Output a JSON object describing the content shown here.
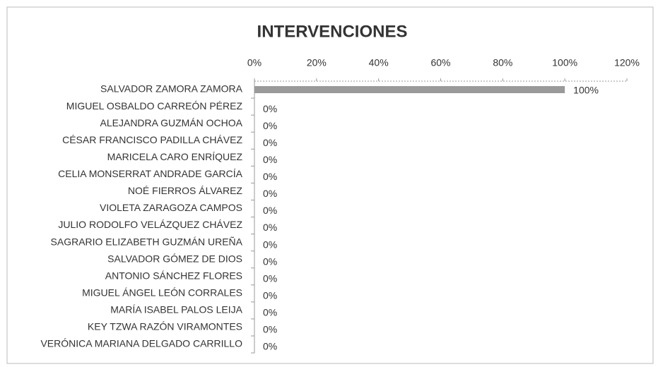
{
  "chart_data": {
    "type": "bar",
    "orientation": "horizontal",
    "title": "INTERVENCIONES",
    "categories": [
      "SALVADOR ZAMORA ZAMORA",
      "MIGUEL OSBALDO CARREÓN PÉREZ",
      "ALEJANDRA GUZMÁN OCHOA",
      "CÉSAR FRANCISCO PADILLA CHÁVEZ",
      "MARICELA CARO ENRÍQUEZ",
      "CELIA MONSERRAT ANDRADE GARCÍA",
      "NOÉ FIERROS ÁLVAREZ",
      "VIOLETA ZARAGOZA CAMPOS",
      "JULIO RODOLFO VELÁZQUEZ CHÁVEZ",
      "SAGRARIO ELIZABETH GUZMÁN UREÑA",
      "SALVADOR GÓMEZ DE DIOS",
      "ANTONIO SÁNCHEZ FLORES",
      "MIGUEL ÁNGEL LEÓN CORRALES",
      "MARÍA ISABEL PALOS LEIJA",
      "KEY TZWA RAZÓN VIRAMONTES",
      "VERÓNICA MARIANA DELGADO CARRILLO"
    ],
    "values": [
      100,
      0,
      0,
      0,
      0,
      0,
      0,
      0,
      0,
      0,
      0,
      0,
      0,
      0,
      0,
      0
    ],
    "value_labels": [
      "100%",
      "0%",
      "0%",
      "0%",
      "0%",
      "0%",
      "0%",
      "0%",
      "0%",
      "0%",
      "0%",
      "0%",
      "0%",
      "0%",
      "0%",
      "0%"
    ],
    "color": "#9a9a9a",
    "xlim": [
      0,
      120
    ],
    "xticks": [
      {
        "value": 0,
        "label": "0%"
      },
      {
        "value": 20,
        "label": "20%"
      },
      {
        "value": 40,
        "label": "40%"
      },
      {
        "value": 60,
        "label": "60%"
      },
      {
        "value": 80,
        "label": "80%"
      },
      {
        "value": 100,
        "label": "100%"
      },
      {
        "value": 120,
        "label": "120%"
      }
    ]
  }
}
